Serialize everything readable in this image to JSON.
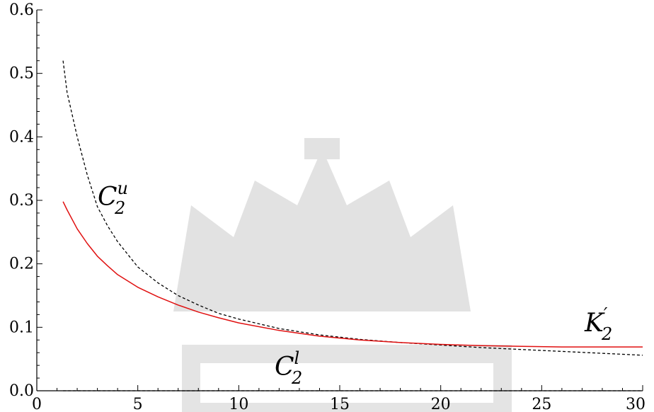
{
  "chart_data": {
    "type": "line",
    "xlim": [
      0,
      30
    ],
    "ylim": [
      0,
      0.6
    ],
    "x_ticks": [
      0,
      5,
      10,
      15,
      20,
      25,
      30
    ],
    "y_ticks": [
      0.0,
      0.1,
      0.2,
      0.3,
      0.4,
      0.5,
      0.6
    ],
    "x_tick_labels": [
      "0",
      "5",
      "10",
      "15",
      "20",
      "25",
      "30"
    ],
    "y_tick_labels": [
      "0.0",
      "0.1",
      "0.2",
      "0.3",
      "0.4",
      "0.5",
      "0.6"
    ],
    "grid": false,
    "series": [
      {
        "name": "C2u",
        "label_main": "C",
        "label_sub": "2",
        "label_sup": "u",
        "style": "dashed",
        "color": "#000000",
        "x": [
          1.3,
          1.5,
          2,
          2.5,
          3,
          3.5,
          4,
          5,
          6,
          7,
          8,
          9,
          10,
          12,
          14,
          16,
          18,
          20,
          22,
          24,
          26,
          28,
          30
        ],
        "y": [
          0.52,
          0.47,
          0.4,
          0.34,
          0.29,
          0.26,
          0.235,
          0.195,
          0.17,
          0.15,
          0.135,
          0.122,
          0.113,
          0.098,
          0.088,
          0.081,
          0.076,
          0.072,
          0.068,
          0.065,
          0.062,
          0.059,
          0.056
        ]
      },
      {
        "name": "K2'",
        "label_main": "K",
        "label_sub": "2",
        "label_sup": "′",
        "style": "solid",
        "color": "#e01010",
        "x": [
          1.3,
          1.5,
          2,
          2.5,
          3,
          3.5,
          4,
          5,
          6,
          7,
          8,
          9,
          10,
          12,
          14,
          16,
          18,
          20,
          22,
          24,
          26,
          28,
          30
        ],
        "y": [
          0.298,
          0.285,
          0.255,
          0.232,
          0.212,
          0.197,
          0.183,
          0.163,
          0.148,
          0.135,
          0.124,
          0.115,
          0.107,
          0.095,
          0.086,
          0.08,
          0.076,
          0.073,
          0.071,
          0.07,
          0.069,
          0.069,
          0.069
        ]
      },
      {
        "name": "C2l",
        "label_main": "C",
        "label_sub": "2",
        "label_sup": "l",
        "style": "dashed",
        "color": "#000000",
        "x": [
          1.3,
          30
        ],
        "y": [
          0.0,
          0.0
        ]
      }
    ]
  }
}
